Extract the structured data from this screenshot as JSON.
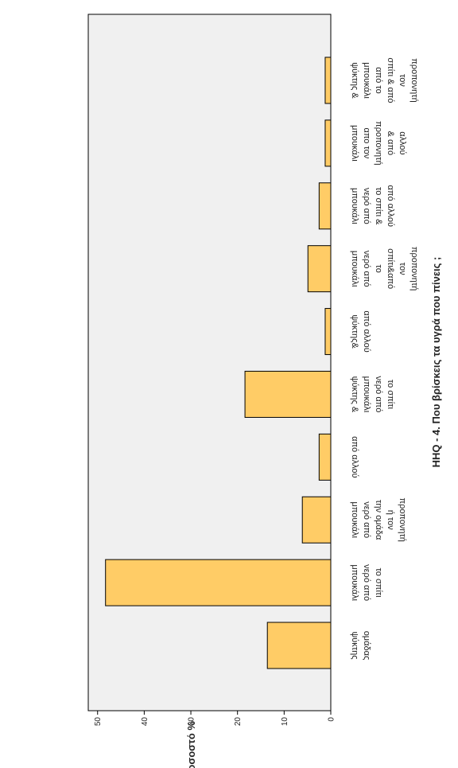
{
  "chart_data": {
    "type": "bar",
    "orientation": "vertical-bars-page-rotated",
    "title": "HHQ - 4. Που βρίσκεις τα υγρά που πίνεις ;",
    "ylabel": "Ποσοστό %",
    "xlabel": "",
    "ylim": [
      0,
      52
    ],
    "yticks": [
      0,
      10,
      20,
      30,
      40,
      50
    ],
    "grid": false,
    "legend": "none",
    "categories": [
      "ψύκτης ομάδας",
      "μπουκάλι νερό από το σπίτι",
      "μπουκάλι νερό από την ομάδα ή τον προπονητή",
      "από αλλού",
      "ψύκτης & μπουκάλι νερό από το σπίτι",
      "ψύκτης& από αλλού",
      "μπουκάλι νερό από το σπίτι&από τον προπονητή",
      "μπουκάλι νερό από το σπίτι & από αλλού",
      "μπουκάλι απο τον προπονητή & από αλλού",
      "ψύκτης & μπουκάλι από το σπίτι & από τον προπονητή"
    ],
    "category_lines": [
      [
        "ψύκτης",
        "ομάδας"
      ],
      [
        "μπουκάλι",
        "νερό από",
        "το σπίτι"
      ],
      [
        "μπουκάλι",
        "νερό από",
        "την ομάδα",
        "ή τον",
        "προπονητή"
      ],
      [
        "από αλλού"
      ],
      [
        "ψύκτης &",
        "μπουκάλι",
        "νερό από",
        "το σπίτι"
      ],
      [
        "ψύκτης&",
        "από αλλού"
      ],
      [
        "μπουκάλι",
        "νερό από",
        "το",
        "σπίτι&από",
        "τον",
        "προπονητή"
      ],
      [
        "μπουκάλι",
        "νερό από",
        "το σπίτι &",
        "από αλλού"
      ],
      [
        "μπουκάλι",
        "απο τον",
        "προπονητή",
        "& από",
        "αλλού"
      ],
      [
        "ψύκτης &",
        "μπουκάλι",
        "από το",
        "σπίτι & από",
        "τον",
        "προπονητή"
      ]
    ],
    "values": [
      13.6,
      48.3,
      6.1,
      2.5,
      18.4,
      1.2,
      4.9,
      2.5,
      1.2,
      1.2
    ],
    "colors": {
      "bar": "#FFCC66",
      "plot_bg": "#F0F0F0",
      "stroke": "#000000"
    }
  }
}
